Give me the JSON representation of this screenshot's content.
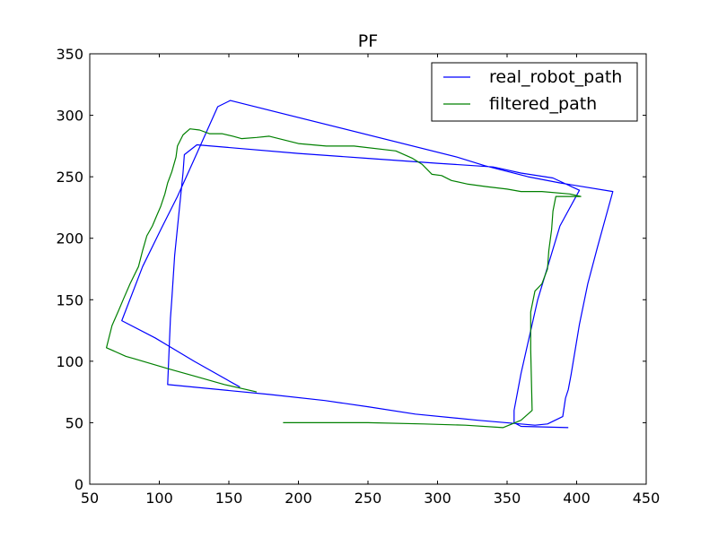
{
  "chart_data": {
    "type": "line",
    "title": "PF",
    "xlabel": "",
    "ylabel": "",
    "xlim": [
      50,
      450
    ],
    "ylim": [
      0,
      350
    ],
    "xticks": [
      50,
      100,
      150,
      200,
      250,
      300,
      350,
      400,
      450
    ],
    "yticks": [
      0,
      50,
      100,
      150,
      200,
      250,
      300,
      350
    ],
    "grid": false,
    "legend_position": "top-right",
    "series": [
      {
        "name": "real_robot_path",
        "color": "#0000ff",
        "points": [
          [
            158,
            79
          ],
          [
            125,
            100
          ],
          [
            97,
            119
          ],
          [
            73,
            133
          ],
          [
            88,
            177
          ],
          [
            101,
            207
          ],
          [
            113,
            234
          ],
          [
            125,
            264
          ],
          [
            142,
            307
          ],
          [
            151,
            312
          ],
          [
            314,
            266
          ],
          [
            334,
            259
          ],
          [
            365,
            250
          ],
          [
            388,
            245
          ],
          [
            426,
            238
          ],
          [
            415,
            193
          ],
          [
            408,
            163
          ],
          [
            402,
            130
          ],
          [
            396,
            89
          ],
          [
            394,
            77
          ],
          [
            392,
            70
          ],
          [
            390,
            55
          ],
          [
            379,
            49
          ],
          [
            370,
            48
          ],
          [
            329,
            52
          ],
          [
            284,
            57
          ],
          [
            250,
            63
          ],
          [
            219,
            68
          ],
          [
            179,
            73
          ],
          [
            106,
            81
          ],
          [
            108,
            135
          ],
          [
            109,
            150
          ],
          [
            111,
            186
          ],
          [
            117,
            253
          ],
          [
            118,
            268
          ],
          [
            127,
            276
          ],
          [
            200,
            269
          ],
          [
            250,
            265
          ],
          [
            300,
            261
          ],
          [
            340,
            258
          ],
          [
            360,
            253
          ],
          [
            383,
            249
          ],
          [
            402,
            239
          ],
          [
            388,
            210
          ],
          [
            372,
            150
          ],
          [
            360,
            90
          ],
          [
            355,
            60
          ],
          [
            355,
            50
          ],
          [
            360,
            47
          ],
          [
            394,
            46
          ]
        ]
      },
      {
        "name": "filtered_path",
        "color": "#008000",
        "points": [
          [
            170,
            75
          ],
          [
            147,
            81
          ],
          [
            125,
            88
          ],
          [
            106,
            94
          ],
          [
            82,
            102
          ],
          [
            76,
            104
          ],
          [
            62,
            111
          ],
          [
            66,
            129
          ],
          [
            71,
            142
          ],
          [
            74,
            150
          ],
          [
            79,
            163
          ],
          [
            85,
            177
          ],
          [
            88,
            190
          ],
          [
            91,
            202
          ],
          [
            95,
            210
          ],
          [
            98,
            218
          ],
          [
            101,
            226
          ],
          [
            104,
            236
          ],
          [
            106,
            245
          ],
          [
            109,
            254
          ],
          [
            112,
            266
          ],
          [
            113,
            275
          ],
          [
            117,
            284
          ],
          [
            122,
            289
          ],
          [
            129,
            288
          ],
          [
            136,
            285
          ],
          [
            145,
            285
          ],
          [
            153,
            283
          ],
          [
            159,
            281
          ],
          [
            170,
            282
          ],
          [
            179,
            283
          ],
          [
            200,
            277
          ],
          [
            220,
            275
          ],
          [
            240,
            275
          ],
          [
            270,
            271
          ],
          [
            282,
            265
          ],
          [
            289,
            260
          ],
          [
            296,
            252
          ],
          [
            303,
            251
          ],
          [
            310,
            247
          ],
          [
            322,
            244
          ],
          [
            335,
            242
          ],
          [
            350,
            240
          ],
          [
            360,
            238
          ],
          [
            375,
            238
          ],
          [
            395,
            236
          ],
          [
            403,
            234
          ],
          [
            385,
            234
          ],
          [
            383,
            222
          ],
          [
            382,
            207
          ],
          [
            380,
            190
          ],
          [
            379,
            175
          ],
          [
            375,
            163
          ],
          [
            370,
            157
          ],
          [
            367,
            140
          ],
          [
            367,
            110
          ],
          [
            368,
            60
          ],
          [
            360,
            52
          ],
          [
            347,
            46
          ],
          [
            320,
            48
          ],
          [
            290,
            49
          ],
          [
            250,
            50
          ],
          [
            189,
            50
          ]
        ]
      }
    ]
  }
}
